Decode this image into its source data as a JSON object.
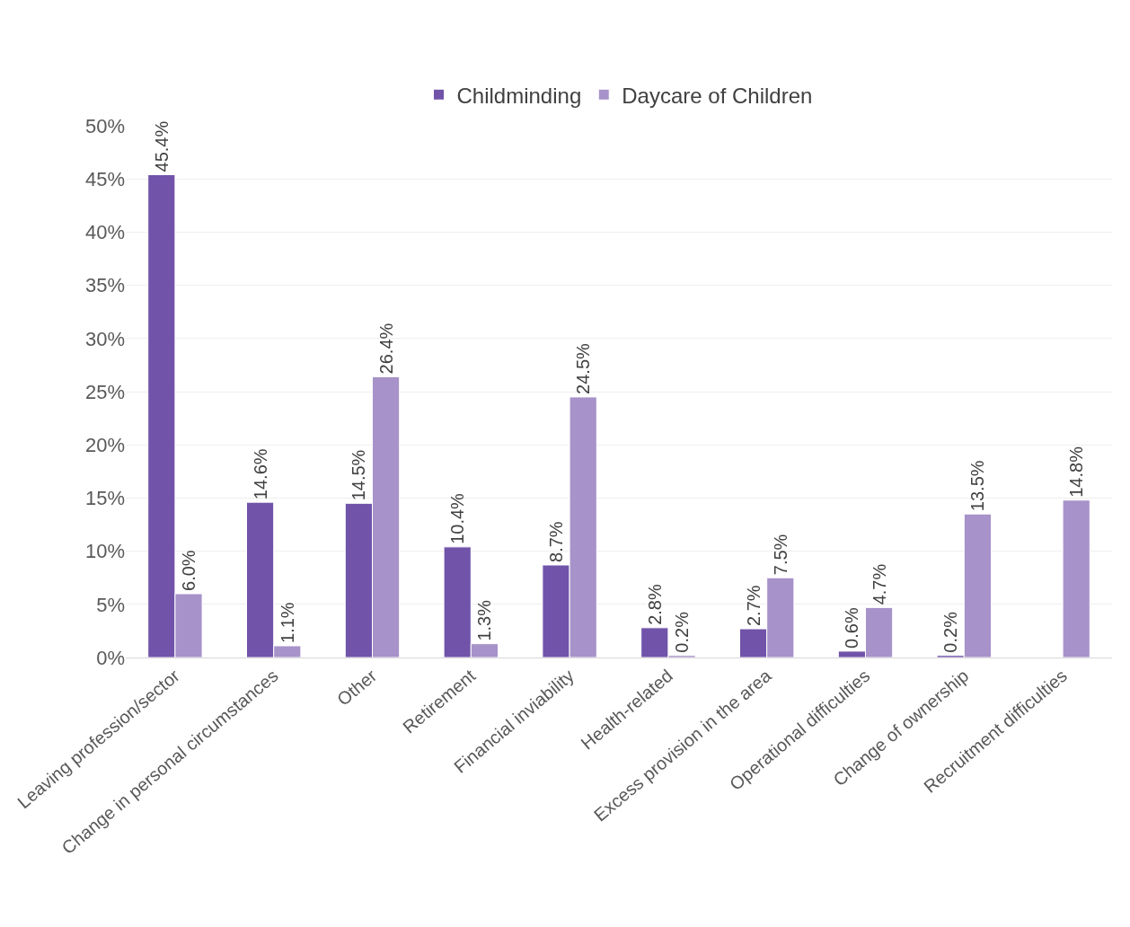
{
  "chart_data": {
    "type": "bar",
    "categories": [
      "Leaving profession/sector",
      "Change in personal circumstances",
      "Other",
      "Retirement",
      "Financial inviability",
      "Health-related",
      "Excess provision in the area",
      "Operational difficulties",
      "Change of ownership",
      "Recruitment difficulties"
    ],
    "series": [
      {
        "name": "Childminding",
        "color": "#7153a9",
        "values": [
          45.4,
          14.6,
          14.5,
          10.4,
          8.7,
          2.8,
          2.7,
          0.6,
          0.2,
          null
        ],
        "value_labels": [
          "45.4%",
          "14.6%",
          "14.5%",
          "10.4%",
          "8.7%",
          "2.8%",
          "2.7%",
          "0.6%",
          "0.2%",
          null
        ]
      },
      {
        "name": "Daycare of Children",
        "color": "#a792c9",
        "values": [
          6.0,
          1.1,
          26.4,
          1.3,
          24.5,
          0.2,
          7.5,
          4.7,
          13.5,
          14.8
        ],
        "value_labels": [
          "6.0%",
          "1.1%",
          "26.4%",
          "1.3%",
          "24.5%",
          "0.2%",
          "7.5%",
          "4.7%",
          "13.5%",
          "14.8%"
        ]
      }
    ],
    "ylim": [
      0,
      50
    ],
    "yticks": [
      {
        "value": 0,
        "label": "0%"
      },
      {
        "value": 5,
        "label": "5%"
      },
      {
        "value": 10,
        "label": "10%"
      },
      {
        "value": 15,
        "label": "15%"
      },
      {
        "value": 20,
        "label": "20%"
      },
      {
        "value": 25,
        "label": "25%"
      },
      {
        "value": 30,
        "label": "30%"
      },
      {
        "value": 35,
        "label": "35%"
      },
      {
        "value": 40,
        "label": "40%"
      },
      {
        "value": 45,
        "label": "45%"
      },
      {
        "value": 50,
        "label": "50%"
      }
    ],
    "grid": "y",
    "legend": "top"
  }
}
